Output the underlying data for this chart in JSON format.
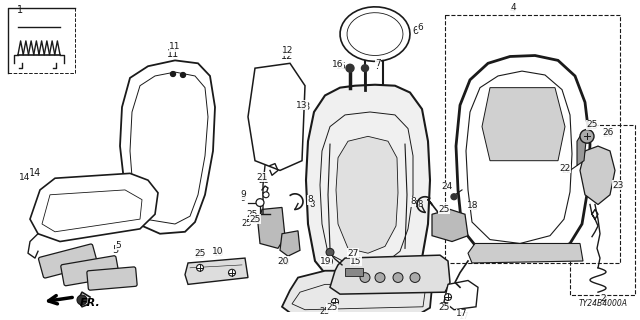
{
  "part_code": "TY24B4000A",
  "background_color": "#ffffff",
  "line_color": "#1a1a1a",
  "fig_width": 6.4,
  "fig_height": 3.2,
  "dpi": 100
}
